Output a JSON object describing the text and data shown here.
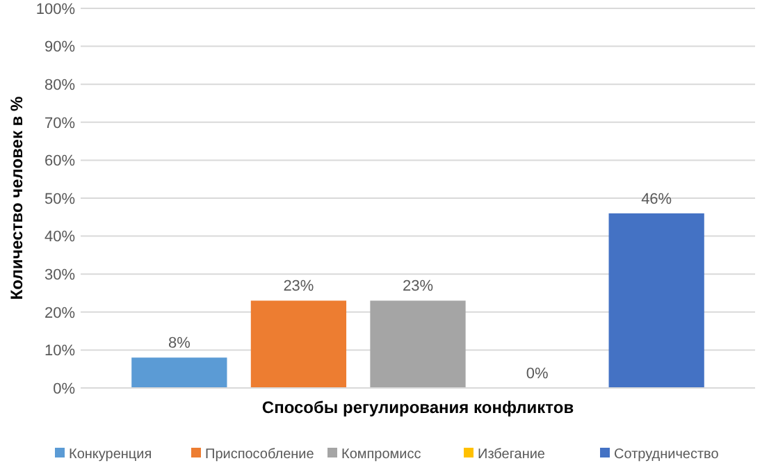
{
  "chart_data": {
    "type": "bar",
    "xlabel": "Способы регулирования конфликтов",
    "ylabel": "Количество человек в %",
    "categories": [
      null
    ],
    "series": [
      {
        "name": "Конкуренция",
        "color": "#5b9bd5",
        "values": [
          8
        ]
      },
      {
        "name": "Приспособление",
        "color": "#ed7d31",
        "values": [
          23
        ]
      },
      {
        "name": "Компромисс",
        "color": "#a5a5a5",
        "values": [
          23
        ]
      },
      {
        "name": "Избегание",
        "color": "#ffc000",
        "values": [
          0
        ]
      },
      {
        "name": "Сотрудничество",
        "color": "#4472c4",
        "values": [
          46
        ]
      }
    ],
    "ylim": [
      0,
      100
    ],
    "yticks": [
      {
        "value": 0,
        "label": "0%"
      },
      {
        "value": 10,
        "label": "10%"
      },
      {
        "value": 20,
        "label": "20%"
      },
      {
        "value": 30,
        "label": "30%"
      },
      {
        "value": 40,
        "label": "40%"
      },
      {
        "value": 50,
        "label": "50%"
      },
      {
        "value": 60,
        "label": "60%"
      },
      {
        "value": 70,
        "label": "70%"
      },
      {
        "value": 80,
        "label": "80%"
      },
      {
        "value": 90,
        "label": "90%"
      },
      {
        "value": 100,
        "label": "100%"
      }
    ],
    "value_labels": [
      "8%",
      "23%",
      "23%",
      "0%",
      "46%"
    ],
    "grid": "y",
    "legend": "bottom"
  }
}
